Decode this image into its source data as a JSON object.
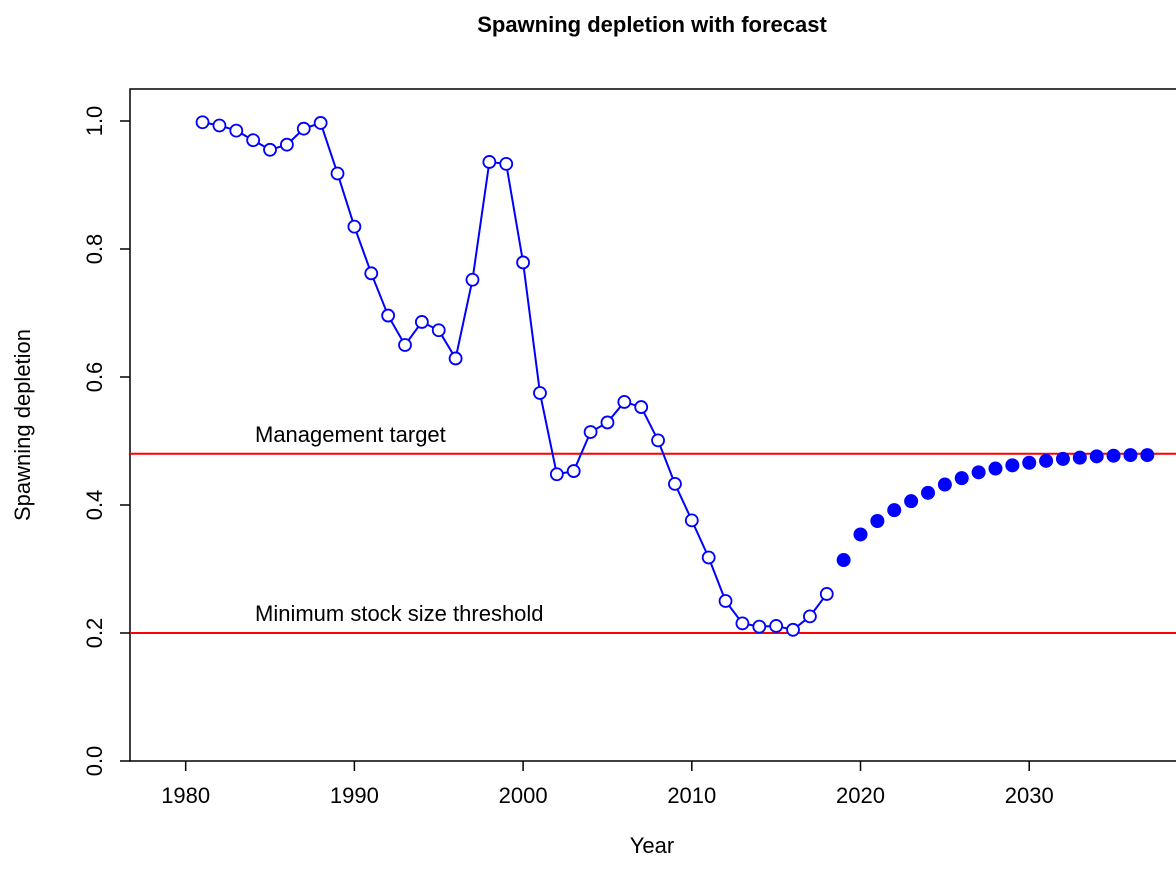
{
  "chart_data": {
    "type": "line",
    "title": "Spawning depletion with forecast",
    "x_label": "Year",
    "y_label": "Spawning depletion",
    "xlim": [
      1976.7,
      2038.7
    ],
    "ylim": [
      0,
      1.05
    ],
    "xticks": [
      1980,
      1990,
      2000,
      2010,
      2020,
      2030
    ],
    "yticks": [
      {
        "value": 0,
        "label": "0.0"
      },
      0.2,
      0.4,
      0.6,
      0.8,
      {
        "value": 1,
        "label": "1.0"
      }
    ],
    "series": [
      {
        "color": "#0000ff",
        "line": true,
        "marker": "open",
        "x": [
          1981,
          1982,
          1983,
          1984,
          1985,
          1986,
          1987,
          1988,
          1989,
          1990,
          1991,
          1992,
          1993,
          1994,
          1995,
          1996,
          1997,
          1998,
          1999,
          2000,
          2001,
          2002,
          2003,
          2004,
          2005,
          2006,
          2007,
          2008,
          2009,
          2010,
          2011,
          2012,
          2013,
          2014,
          2015,
          2016,
          2017,
          2018
        ],
        "values": [
          0.998,
          0.993,
          0.985,
          0.97,
          0.955,
          0.963,
          0.988,
          0.997,
          0.918,
          0.835,
          0.762,
          0.696,
          0.65,
          0.686,
          0.673,
          0.629,
          0.752,
          0.936,
          0.933,
          0.779,
          0.575,
          0.448,
          0.453,
          0.514,
          0.529,
          0.561,
          0.553,
          0.501,
          0.433,
          0.376,
          0.318,
          0.25,
          0.215,
          0.21,
          0.211,
          0.205,
          0.226,
          0.261
        ]
      },
      {
        "color": "#0000ff",
        "line": false,
        "marker": "filled",
        "x": [
          2019,
          2020,
          2021,
          2022,
          2023,
          2024,
          2025,
          2026,
          2027,
          2028,
          2029,
          2030,
          2031,
          2032,
          2033,
          2034,
          2035,
          2036,
          2037
        ],
        "values": [
          0.314,
          0.354,
          0.375,
          0.392,
          0.406,
          0.419,
          0.432,
          0.442,
          0.451,
          0.457,
          0.462,
          0.466,
          0.469,
          0.472,
          0.474,
          0.476,
          0.477,
          0.478,
          0.478
        ]
      }
    ],
    "reference_lines": [
      {
        "value": 0.48,
        "label": "Management target",
        "color": "#ff0000"
      },
      {
        "value": 0.2,
        "label": "Minimum stock size threshold",
        "color": "#ff0000"
      }
    ]
  }
}
